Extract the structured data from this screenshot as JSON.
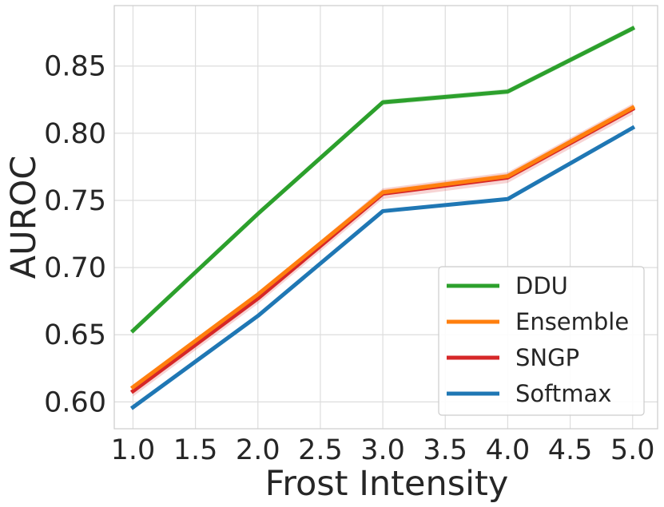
{
  "chart_data": {
    "type": "line",
    "xlabel": "Frost Intensity",
    "ylabel": "AUROC",
    "xlim": [
      0.85,
      5.2
    ],
    "ylim": [
      0.58,
      0.895
    ],
    "xticks": [
      1.0,
      1.5,
      2.0,
      2.5,
      3.0,
      3.5,
      4.0,
      4.5,
      5.0
    ],
    "xtick_labels": [
      "1.0",
      "1.5",
      "2.0",
      "2.5",
      "3.0",
      "3.5",
      "4.0",
      "4.5",
      "5.0"
    ],
    "yticks": [
      0.6,
      0.65,
      0.7,
      0.75,
      0.8,
      0.85
    ],
    "ytick_labels": [
      "0.60",
      "0.65",
      "0.70",
      "0.75",
      "0.80",
      "0.85"
    ],
    "grid": true,
    "legend_position": "bottom-right",
    "x": [
      1.0,
      2.0,
      3.0,
      4.0,
      5.0
    ],
    "series": [
      {
        "name": "DDU",
        "color": "#2ca02c",
        "values": [
          0.653,
          0.74,
          0.823,
          0.831,
          0.878
        ],
        "band": 0.002
      },
      {
        "name": "Ensemble",
        "color": "#ff7f0e",
        "values": [
          0.611,
          0.68,
          0.756,
          0.768,
          0.819
        ],
        "band": 0.002
      },
      {
        "name": "SNGP",
        "color": "#d62728",
        "values": [
          0.608,
          0.677,
          0.755,
          0.767,
          0.818
        ],
        "band": 0.004
      },
      {
        "name": "Softmax",
        "color": "#1f77b4",
        "values": [
          0.596,
          0.664,
          0.742,
          0.751,
          0.804
        ],
        "band": 0.001
      }
    ]
  }
}
